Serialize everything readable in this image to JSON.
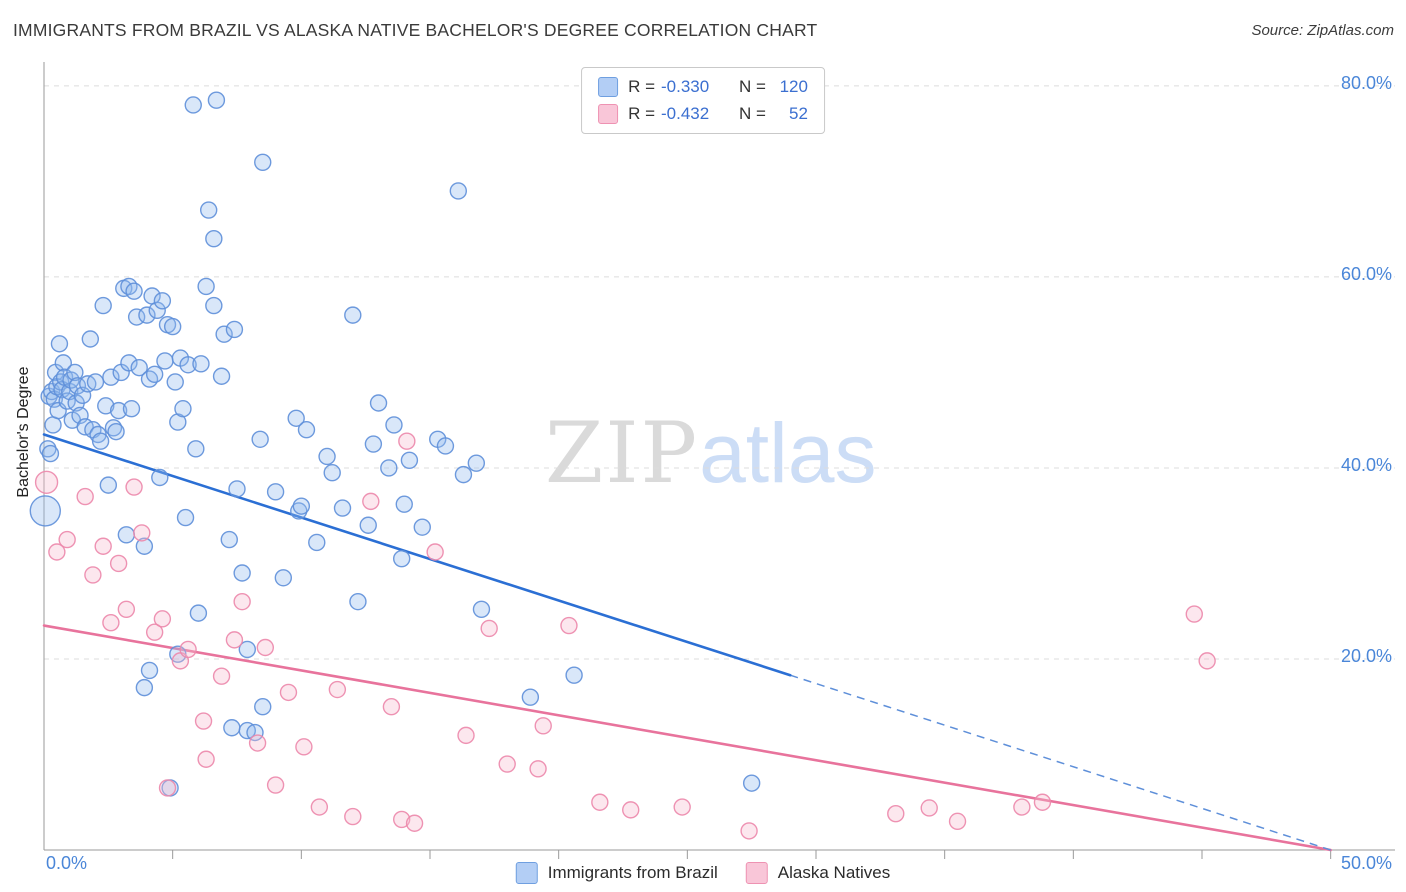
{
  "header": {
    "title": "IMMIGRANTS FROM BRAZIL VS ALASKA NATIVE BACHELOR'S DEGREE CORRELATION CHART",
    "source": "Source: ZipAtlas.com"
  },
  "legend_box": {
    "rows": [
      {
        "series": "Immigrants from Brazil",
        "r_label": "R =",
        "r_value": "-0.330",
        "n_label": "N =",
        "n_value": "120"
      },
      {
        "series": "Alaska Natives",
        "r_label": "R =",
        "r_value": "-0.432",
        "n_label": "N =",
        "n_value": "52"
      }
    ]
  },
  "axes": {
    "y_label": "Bachelor's Degree",
    "y_ticks": [
      "80.0%",
      "60.0%",
      "40.0%",
      "20.0%"
    ],
    "x_min_label": "0.0%",
    "x_max_label": "50.0%"
  },
  "bottom_legend": [
    {
      "label": "Immigrants from Brazil",
      "color": "blue"
    },
    {
      "label": "Alaska Natives",
      "color": "pink"
    }
  ],
  "watermark": {
    "part1": "ZIP",
    "part2": "atlas"
  },
  "colors": {
    "blue_series_fill": "#93bbee",
    "blue_series_stroke": "#5e8fd9",
    "pink_series_fill": "#f7b9cf",
    "pink_series_stroke": "#ec87ab",
    "blue_trend": "#2b6fd4",
    "pink_trend": "#e8739c",
    "axis_label_blue": "#4a86d8",
    "gridline": "#dcdcdc",
    "axis_line": "#9a9a9a"
  },
  "chart_data": {
    "type": "scatter",
    "title": "IMMIGRANTS FROM BRAZIL VS ALASKA NATIVE BACHELOR'S DEGREE CORRELATION CHART",
    "xlabel": "",
    "ylabel": "Bachelor's Degree",
    "x_unit": "%",
    "y_unit": "%",
    "xlim": [
      0,
      52.5
    ],
    "ylim": [
      0,
      82.5
    ],
    "grid_y": [
      20,
      40,
      60,
      80
    ],
    "x_tick_step": 5,
    "x_tick_max": 50,
    "legend_position": "bottom-center",
    "series": [
      {
        "name": "Immigrants from Brazil",
        "R": -0.33,
        "N": 120,
        "points": [
          [
            0.05,
            35.5,
            15
          ],
          [
            0.15,
            42
          ],
          [
            0.2,
            47.5
          ],
          [
            0.25,
            41.5
          ],
          [
            0.3,
            48
          ],
          [
            0.35,
            44.5
          ],
          [
            0.4,
            47.2
          ],
          [
            0.45,
            50
          ],
          [
            0.5,
            48.5
          ],
          [
            0.55,
            46
          ],
          [
            0.6,
            53
          ],
          [
            0.65,
            49
          ],
          [
            0.7,
            48.2
          ],
          [
            0.75,
            51
          ],
          [
            0.8,
            49.5
          ],
          [
            0.9,
            47
          ],
          [
            1,
            48
          ],
          [
            1.05,
            49.2
          ],
          [
            1.1,
            45
          ],
          [
            1.2,
            50
          ],
          [
            1.25,
            46.8
          ],
          [
            1.3,
            48.6
          ],
          [
            1.4,
            45.5
          ],
          [
            1.5,
            47.6
          ],
          [
            1.6,
            44.3
          ],
          [
            1.7,
            48.8
          ],
          [
            1.8,
            53.5
          ],
          [
            1.9,
            44
          ],
          [
            2,
            49
          ],
          [
            2.1,
            43.5
          ],
          [
            2.2,
            42.8
          ],
          [
            2.3,
            57
          ],
          [
            2.4,
            46.5
          ],
          [
            2.5,
            38.2
          ],
          [
            2.6,
            49.5
          ],
          [
            2.7,
            44.2
          ],
          [
            2.8,
            43.8
          ],
          [
            2.9,
            46
          ],
          [
            3,
            50
          ],
          [
            3.1,
            58.8
          ],
          [
            3.2,
            33
          ],
          [
            3.3,
            59
          ],
          [
            3.3,
            51
          ],
          [
            3.4,
            46.2
          ],
          [
            3.5,
            58.5
          ],
          [
            3.6,
            55.8
          ],
          [
            3.7,
            50.5
          ],
          [
            3.9,
            31.8
          ],
          [
            3.9,
            17
          ],
          [
            4,
            56
          ],
          [
            4.1,
            49.3
          ],
          [
            4.1,
            18.8
          ],
          [
            4.2,
            58
          ],
          [
            4.3,
            49.8
          ],
          [
            4.4,
            56.5
          ],
          [
            4.5,
            39
          ],
          [
            4.6,
            57.5
          ],
          [
            4.7,
            51.2
          ],
          [
            4.8,
            55
          ],
          [
            4.9,
            6.5
          ],
          [
            5,
            54.8
          ],
          [
            5.1,
            49
          ],
          [
            5.2,
            44.8
          ],
          [
            5.2,
            20.5
          ],
          [
            5.3,
            51.5
          ],
          [
            5.4,
            46.2
          ],
          [
            5.5,
            34.8
          ],
          [
            5.6,
            50.8
          ],
          [
            5.8,
            78
          ],
          [
            5.9,
            42
          ],
          [
            6,
            24.8
          ],
          [
            6.1,
            50.9
          ],
          [
            6.3,
            59
          ],
          [
            6.4,
            67
          ],
          [
            6.6,
            64
          ],
          [
            6.6,
            57
          ],
          [
            6.7,
            78.5
          ],
          [
            6.9,
            49.6
          ],
          [
            7,
            54
          ],
          [
            7.2,
            32.5
          ],
          [
            7.3,
            12.8
          ],
          [
            7.4,
            54.5
          ],
          [
            7.5,
            37.8
          ],
          [
            7.7,
            29
          ],
          [
            7.9,
            21
          ],
          [
            7.9,
            12.5
          ],
          [
            8.2,
            12.3
          ],
          [
            8.4,
            43
          ],
          [
            8.5,
            72
          ],
          [
            8.5,
            15
          ],
          [
            9,
            37.5
          ],
          [
            9.3,
            28.5
          ],
          [
            9.8,
            45.2
          ],
          [
            9.9,
            35.5
          ],
          [
            10,
            36
          ],
          [
            10.2,
            44
          ],
          [
            10.6,
            32.2
          ],
          [
            11,
            41.2
          ],
          [
            11.2,
            39.5
          ],
          [
            11.6,
            35.8
          ],
          [
            12,
            56
          ],
          [
            12.2,
            26
          ],
          [
            12.6,
            34
          ],
          [
            12.8,
            42.5
          ],
          [
            13,
            46.8
          ],
          [
            13.4,
            40
          ],
          [
            13.6,
            44.5
          ],
          [
            13.9,
            30.5
          ],
          [
            14,
            36.2
          ],
          [
            14.2,
            40.8
          ],
          [
            14.7,
            33.8
          ],
          [
            15.3,
            43
          ],
          [
            15.6,
            42.3
          ],
          [
            16.1,
            69
          ],
          [
            16.3,
            39.3
          ],
          [
            16.8,
            40.5
          ],
          [
            17,
            25.2
          ],
          [
            18.9,
            16
          ],
          [
            20.6,
            18.3
          ],
          [
            27.5,
            7
          ]
        ]
      },
      {
        "name": "Alaska Natives",
        "R": -0.432,
        "N": 52,
        "points": [
          [
            0.1,
            38.5,
            11
          ],
          [
            0.5,
            31.2
          ],
          [
            0.9,
            32.5
          ],
          [
            1.6,
            37
          ],
          [
            1.9,
            28.8
          ],
          [
            2.3,
            31.8
          ],
          [
            2.6,
            23.8
          ],
          [
            2.9,
            30
          ],
          [
            3.2,
            25.2
          ],
          [
            3.5,
            38
          ],
          [
            3.8,
            33.2
          ],
          [
            4.3,
            22.8
          ],
          [
            4.6,
            24.2
          ],
          [
            4.8,
            6.5
          ],
          [
            5.3,
            19.8
          ],
          [
            5.6,
            21
          ],
          [
            6.2,
            13.5
          ],
          [
            6.3,
            9.5
          ],
          [
            6.9,
            18.2
          ],
          [
            7.4,
            22
          ],
          [
            7.7,
            26
          ],
          [
            8.3,
            11.2
          ],
          [
            8.6,
            21.2
          ],
          [
            9,
            6.8
          ],
          [
            9.5,
            16.5
          ],
          [
            10.1,
            10.8
          ],
          [
            10.7,
            4.5
          ],
          [
            11.4,
            16.8
          ],
          [
            12,
            3.5
          ],
          [
            12.7,
            36.5
          ],
          [
            13.5,
            15
          ],
          [
            13.9,
            3.2
          ],
          [
            14.1,
            42.8
          ],
          [
            14.4,
            2.8
          ],
          [
            15.2,
            31.2
          ],
          [
            16.4,
            12
          ],
          [
            17.3,
            23.2
          ],
          [
            18,
            9
          ],
          [
            19.2,
            8.5
          ],
          [
            19.4,
            13
          ],
          [
            20.4,
            23.5
          ],
          [
            21.6,
            5
          ],
          [
            22.8,
            4.2
          ],
          [
            24.8,
            4.5
          ],
          [
            27.4,
            2
          ],
          [
            33.1,
            3.8
          ],
          [
            34.4,
            4.4
          ],
          [
            35.5,
            3
          ],
          [
            38,
            4.5
          ],
          [
            38.8,
            5
          ],
          [
            44.7,
            24.7
          ],
          [
            45.2,
            19.8
          ]
        ]
      }
    ],
    "trend_lines": [
      {
        "series": "Immigrants from Brazil",
        "start": [
          0,
          43.5
        ],
        "solid_end": [
          29,
          18.3
        ],
        "dash_end": [
          50,
          0
        ]
      },
      {
        "series": "Alaska Natives",
        "start": [
          0,
          23.5
        ],
        "solid_end": [
          50,
          0
        ]
      }
    ]
  }
}
